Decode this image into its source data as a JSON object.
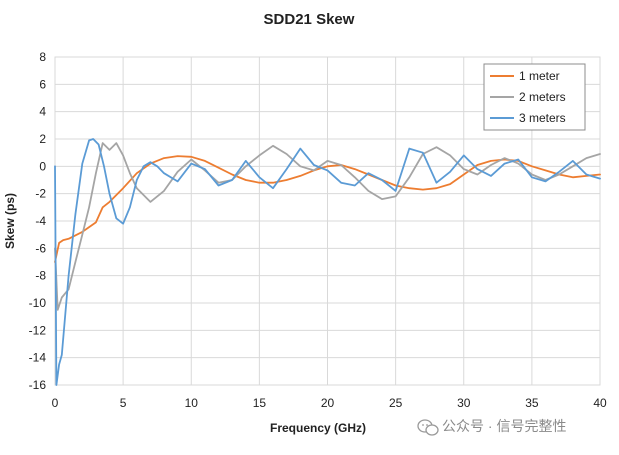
{
  "chart_data": {
    "type": "line",
    "title": "SDD21 Skew",
    "xlabel": "Frequency (GHz)",
    "ylabel": "Skew (ps)",
    "xlim": [
      0,
      40
    ],
    "ylim": [
      -16,
      8
    ],
    "xticks": [
      0,
      5,
      10,
      15,
      20,
      25,
      30,
      35,
      40
    ],
    "yticks": [
      -16,
      -14,
      -12,
      -10,
      -8,
      -6,
      -4,
      -2,
      0,
      2,
      4,
      6,
      8
    ],
    "grid": true,
    "legend_position": "top-right",
    "series": [
      {
        "name": "1 meter",
        "color": "#ED7D31",
        "x": [
          0,
          0.3,
          0.6,
          1,
          2,
          3,
          3.5,
          4,
          5,
          6,
          7,
          8,
          9,
          10,
          11,
          12,
          13,
          14,
          15,
          16,
          17,
          18,
          19,
          20,
          21,
          22,
          23,
          24,
          25,
          26,
          27,
          28,
          29,
          30,
          31,
          32,
          33,
          34,
          35,
          36,
          37,
          38,
          39,
          40
        ],
        "y": [
          -7,
          -5.6,
          -5.4,
          -5.3,
          -4.8,
          -4.1,
          -3.0,
          -2.6,
          -1.6,
          -0.5,
          0.2,
          0.6,
          0.75,
          0.7,
          0.4,
          -0.1,
          -0.6,
          -1.0,
          -1.2,
          -1.2,
          -1.0,
          -0.7,
          -0.3,
          0.0,
          0.1,
          -0.2,
          -0.6,
          -1.0,
          -1.4,
          -1.6,
          -1.7,
          -1.6,
          -1.3,
          -0.6,
          0.1,
          0.4,
          0.5,
          0.4,
          0.0,
          -0.3,
          -0.6,
          -0.8,
          -0.7,
          -0.6
        ]
      },
      {
        "name": "2 meters",
        "color": "#A5A5A5",
        "x": [
          0,
          0.2,
          0.5,
          1,
          1.5,
          2,
          2.5,
          3,
          3.5,
          4,
          4.5,
          5,
          5.5,
          6,
          7,
          8,
          9,
          10,
          11,
          12,
          13,
          14,
          15,
          16,
          17,
          18,
          19,
          20,
          21,
          22,
          23,
          24,
          25,
          26,
          27,
          28,
          29,
          30,
          31,
          32,
          33,
          34,
          35,
          36,
          37,
          38,
          39,
          40
        ],
        "y": [
          -6,
          -10.5,
          -9.6,
          -9.0,
          -7.0,
          -5.0,
          -3.0,
          -0.5,
          1.7,
          1.2,
          1.7,
          0.8,
          -0.5,
          -1.6,
          -2.6,
          -1.8,
          -0.4,
          0.5,
          -0.3,
          -1.2,
          -1.0,
          0.0,
          0.8,
          1.5,
          0.9,
          0.0,
          -0.3,
          0.4,
          0.1,
          -0.8,
          -1.8,
          -2.4,
          -2.2,
          -0.8,
          0.9,
          1.4,
          0.8,
          -0.2,
          -0.6,
          0.1,
          0.6,
          0.2,
          -0.6,
          -1.0,
          -0.6,
          0.0,
          0.6,
          0.9
        ]
      },
      {
        "name": "3 meters",
        "color": "#5B9BD5",
        "x": [
          0,
          0.1,
          0.3,
          0.5,
          1,
          1.5,
          2,
          2.5,
          2.8,
          3.2,
          3.6,
          4,
          4.5,
          5,
          5.5,
          6,
          6.5,
          7,
          7.5,
          8,
          9,
          10,
          11,
          12,
          13,
          14,
          15,
          16,
          17,
          18,
          19,
          20,
          21,
          22,
          23,
          24,
          25,
          26,
          27,
          28,
          29,
          30,
          31,
          32,
          33,
          34,
          35,
          36,
          37,
          38,
          39,
          40
        ],
        "y": [
          0,
          -16.0,
          -14.5,
          -13.8,
          -8.0,
          -3.5,
          0.2,
          1.9,
          2.0,
          1.6,
          0.0,
          -2.0,
          -3.8,
          -4.2,
          -3.0,
          -1.0,
          0.0,
          0.3,
          0.0,
          -0.5,
          -1.1,
          0.2,
          -0.2,
          -1.4,
          -1.0,
          0.4,
          -0.8,
          -1.6,
          -0.2,
          1.3,
          0.1,
          -0.3,
          -1.2,
          -1.4,
          -0.5,
          -1.0,
          -1.8,
          1.3,
          1.0,
          -1.2,
          -0.4,
          0.8,
          -0.2,
          -0.7,
          0.2,
          0.5,
          -0.8,
          -1.1,
          -0.4,
          0.4,
          -0.6,
          -0.9
        ]
      }
    ]
  },
  "watermark": {
    "text": "公众号 · 信号完整性"
  }
}
